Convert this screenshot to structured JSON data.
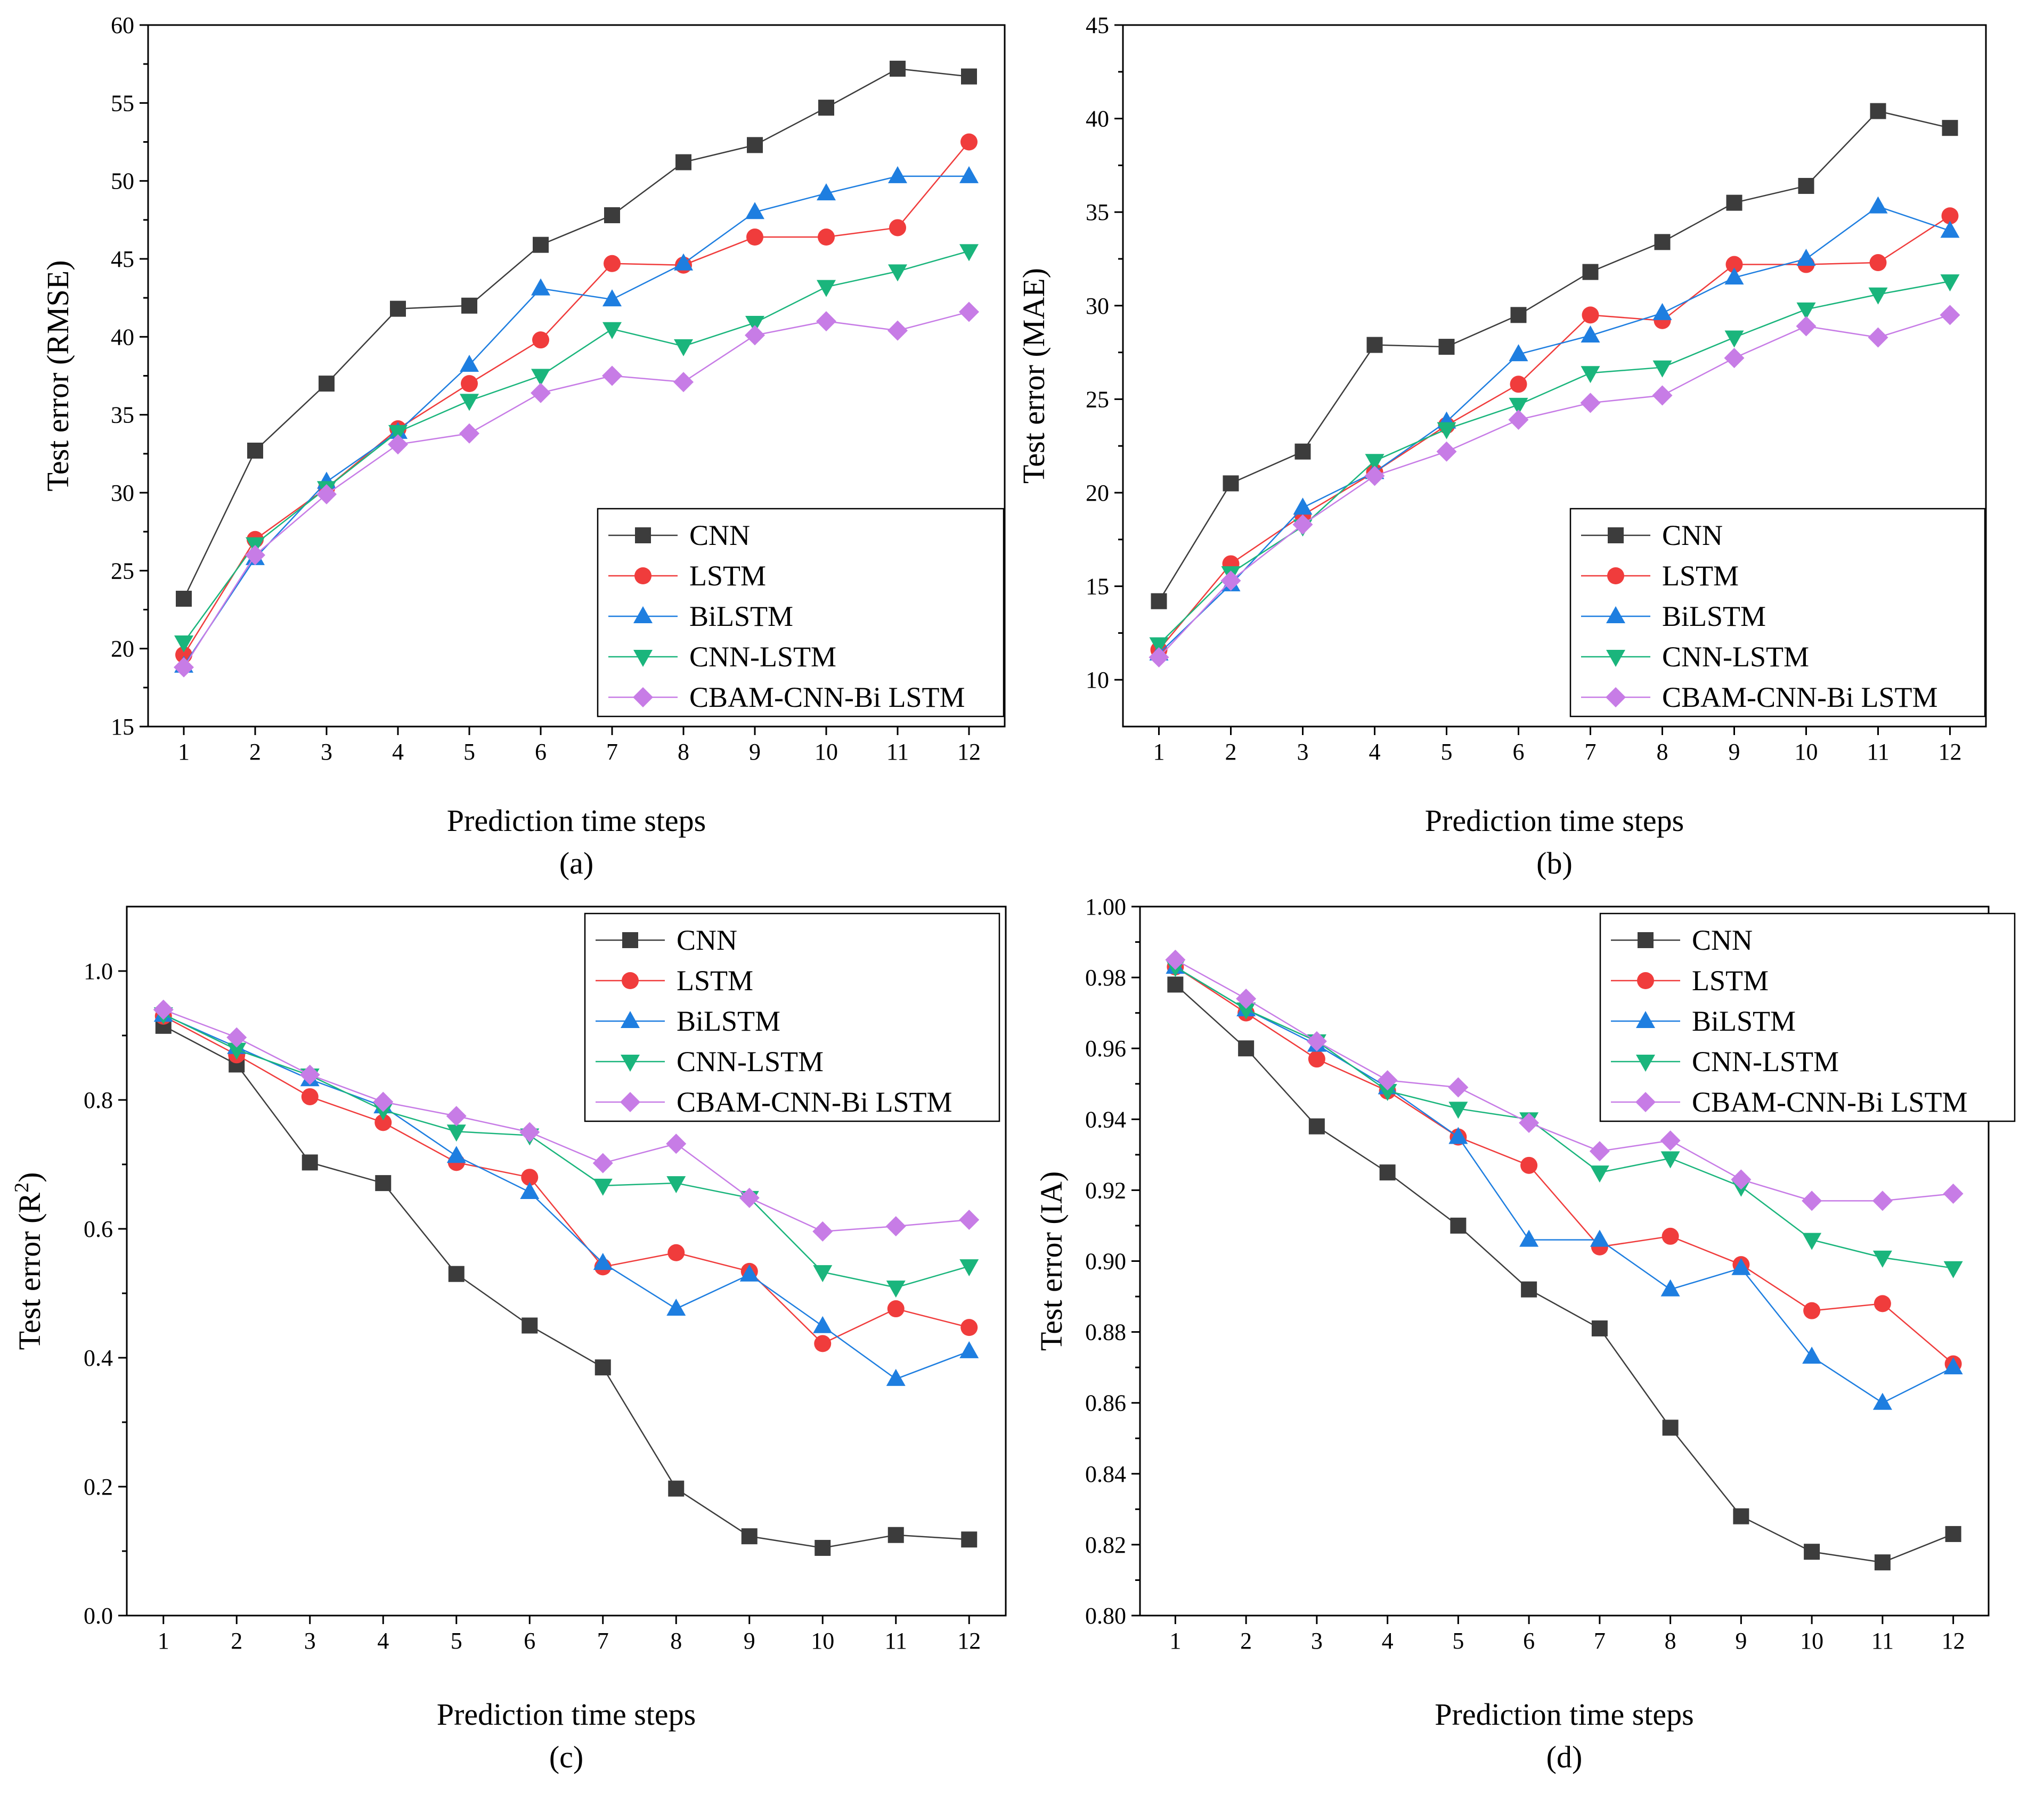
{
  "figure": {
    "x_label": "Prediction time steps",
    "legend_labels": [
      "CNN",
      "LSTM",
      "BiLSTM",
      "CNN-LSTM",
      "CBAM-CNN-Bi LSTM"
    ],
    "colors": {
      "CNN": "#3c3c3c",
      "LSTM": "#f03c3c",
      "BiLSTM": "#1e7ee0",
      "CNN-LSTM": "#1ab57c",
      "CBAM-CNN-Bi LSTM": "#c77ce6"
    }
  },
  "chart_data": [
    {
      "type": "line",
      "panel": "(a)",
      "caption": "(a)",
      "xlabel": "Prediction time steps",
      "ylabel": "Test error (RMSE)",
      "ylabel_parts": [
        "Test error (RMSE)"
      ],
      "x": [
        1,
        2,
        3,
        4,
        5,
        6,
        7,
        8,
        9,
        10,
        11,
        12
      ],
      "ylim": [
        15,
        60
      ],
      "yticks": [
        15,
        20,
        25,
        30,
        35,
        40,
        45,
        50,
        55,
        60
      ],
      "ytick_labels": [
        "15",
        "20",
        "25",
        "30",
        "35",
        "40",
        "45",
        "50",
        "55",
        "60"
      ],
      "legend_position": "bottom-right",
      "series": [
        {
          "name": "CNN",
          "values": [
            23.2,
            32.7,
            37.0,
            41.8,
            42.0,
            45.9,
            47.8,
            51.2,
            52.3,
            54.7,
            57.2,
            56.7
          ]
        },
        {
          "name": "LSTM",
          "values": [
            19.6,
            27.0,
            30.3,
            34.1,
            37.0,
            39.8,
            44.7,
            44.6,
            46.4,
            46.4,
            47.0,
            52.5
          ]
        },
        {
          "name": "BiLSTM",
          "values": [
            18.9,
            25.8,
            30.7,
            33.9,
            38.2,
            43.1,
            42.4,
            44.7,
            48.0,
            49.2,
            50.3,
            50.3
          ]
        },
        {
          "name": "CNN-LSTM",
          "values": [
            20.4,
            26.7,
            30.3,
            33.9,
            35.9,
            37.5,
            40.5,
            39.4,
            40.9,
            43.2,
            44.2,
            45.5
          ]
        },
        {
          "name": "CBAM-CNN-Bi LSTM",
          "values": [
            18.8,
            26.0,
            29.9,
            33.1,
            33.8,
            36.4,
            37.5,
            37.1,
            40.1,
            41.0,
            40.4,
            41.6
          ]
        }
      ]
    },
    {
      "type": "line",
      "panel": "(b)",
      "caption": "(b)",
      "xlabel": "Prediction time steps",
      "ylabel": "Test error (MAE)",
      "ylabel_parts": [
        "Test error (MAE)"
      ],
      "x": [
        1,
        2,
        3,
        4,
        5,
        6,
        7,
        8,
        9,
        10,
        11,
        12
      ],
      "ylim": [
        7.5,
        45
      ],
      "yticks": [
        10,
        15,
        20,
        25,
        30,
        35,
        40,
        45
      ],
      "ytick_labels": [
        "10",
        "15",
        "20",
        "25",
        "30",
        "35",
        "40",
        "45"
      ],
      "legend_position": "bottom-right",
      "series": [
        {
          "name": "CNN",
          "values": [
            14.2,
            20.5,
            22.2,
            27.9,
            27.8,
            29.5,
            31.8,
            33.4,
            35.5,
            36.4,
            40.4,
            39.5
          ]
        },
        {
          "name": "LSTM",
          "values": [
            11.6,
            16.2,
            18.8,
            21.1,
            23.6,
            25.8,
            29.5,
            29.2,
            32.2,
            32.2,
            32.3,
            34.8
          ]
        },
        {
          "name": "BiLSTM",
          "values": [
            11.4,
            15.1,
            19.2,
            21.1,
            23.8,
            27.4,
            28.4,
            29.6,
            31.5,
            32.5,
            35.3,
            34.0
          ]
        },
        {
          "name": "CNN-LSTM",
          "values": [
            11.9,
            15.7,
            18.2,
            21.7,
            23.4,
            24.7,
            26.4,
            26.7,
            28.3,
            29.8,
            30.6,
            31.3
          ]
        },
        {
          "name": "CBAM-CNN-Bi LSTM",
          "values": [
            11.2,
            15.3,
            18.3,
            20.9,
            22.2,
            23.9,
            24.8,
            25.2,
            27.2,
            28.9,
            28.3,
            29.5
          ]
        }
      ]
    },
    {
      "type": "line",
      "panel": "(c)",
      "caption": "(c)",
      "xlabel": "Prediction time steps",
      "ylabel": "Test error (R2)",
      "ylabel_parts": [
        "Test error (R",
        "2",
        ")"
      ],
      "x": [
        1,
        2,
        3,
        4,
        5,
        6,
        7,
        8,
        9,
        10,
        11,
        12
      ],
      "ylim": [
        0.0,
        1.1
      ],
      "yticks": [
        0.0,
        0.2,
        0.4,
        0.6,
        0.8,
        1.0
      ],
      "ytick_labels": [
        "0.0",
        "0.2",
        "0.4",
        "0.6",
        "0.8",
        "1.0"
      ],
      "legend_position": "top-right",
      "series": [
        {
          "name": "CNN",
          "values": [
            0.915,
            0.855,
            0.703,
            0.671,
            0.53,
            0.45,
            0.385,
            0.197,
            0.123,
            0.105,
            0.125,
            0.118
          ]
        },
        {
          "name": "LSTM",
          "values": [
            0.93,
            0.87,
            0.805,
            0.765,
            0.703,
            0.68,
            0.541,
            0.563,
            0.534,
            0.422,
            0.476,
            0.447
          ]
        },
        {
          "name": "BiLSTM",
          "values": [
            0.932,
            0.882,
            0.832,
            0.79,
            0.713,
            0.657,
            0.547,
            0.476,
            0.529,
            0.449,
            0.367,
            0.41
          ]
        },
        {
          "name": "CNN-LSTM",
          "values": [
            0.933,
            0.878,
            0.838,
            0.784,
            0.751,
            0.745,
            0.667,
            0.671,
            0.648,
            0.533,
            0.509,
            0.542
          ]
        },
        {
          "name": "CBAM-CNN-Bi LSTM",
          "values": [
            0.94,
            0.897,
            0.839,
            0.797,
            0.775,
            0.75,
            0.702,
            0.732,
            0.648,
            0.596,
            0.604,
            0.614
          ]
        }
      ]
    },
    {
      "type": "line",
      "panel": "(d)",
      "caption": "(d)",
      "xlabel": "Prediction time steps",
      "ylabel": "Test error (IA)",
      "ylabel_parts": [
        "Test error (IA)"
      ],
      "x": [
        1,
        2,
        3,
        4,
        5,
        6,
        7,
        8,
        9,
        10,
        11,
        12
      ],
      "ylim": [
        0.8,
        1.0
      ],
      "yticks": [
        0.8,
        0.82,
        0.84,
        0.86,
        0.88,
        0.9,
        0.92,
        0.94,
        0.96,
        0.98,
        1.0
      ],
      "ytick_labels": [
        "0.80",
        "0.82",
        "0.84",
        "0.86",
        "0.88",
        "0.90",
        "0.92",
        "0.94",
        "0.96",
        "0.98",
        "1.00"
      ],
      "legend_position": "top-right",
      "series": [
        {
          "name": "CNN",
          "values": [
            0.978,
            0.96,
            0.938,
            0.925,
            0.91,
            0.892,
            0.881,
            0.853,
            0.828,
            0.818,
            0.815,
            0.823
          ]
        },
        {
          "name": "LSTM",
          "values": [
            0.983,
            0.97,
            0.957,
            0.948,
            0.935,
            0.927,
            0.904,
            0.907,
            0.899,
            0.886,
            0.888,
            0.871
          ]
        },
        {
          "name": "BiLSTM",
          "values": [
            0.983,
            0.971,
            0.961,
            0.949,
            0.935,
            0.906,
            0.906,
            0.892,
            0.898,
            0.873,
            0.86,
            0.87
          ]
        },
        {
          "name": "CNN-LSTM",
          "values": [
            0.983,
            0.971,
            0.962,
            0.948,
            0.943,
            0.94,
            0.925,
            0.929,
            0.921,
            0.906,
            0.901,
            0.898
          ]
        },
        {
          "name": "CBAM-CNN-Bi LSTM",
          "values": [
            0.985,
            0.974,
            0.962,
            0.951,
            0.949,
            0.939,
            0.931,
            0.934,
            0.923,
            0.917,
            0.917,
            0.919
          ]
        }
      ]
    }
  ]
}
